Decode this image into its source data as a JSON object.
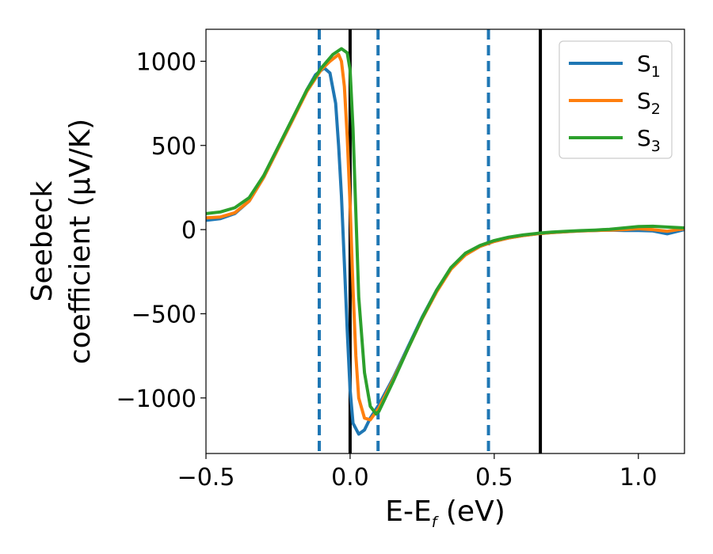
{
  "chart_data": {
    "type": "line",
    "xlabel": {
      "main": "E-E",
      "sub": "f",
      "unit": " (eV)"
    },
    "ylabel": {
      "line1": "Seebeck",
      "line2": "coefficient  (μV/K)"
    },
    "xlim": [
      -0.5,
      1.16
    ],
    "ylim": [
      -1330,
      1190
    ],
    "xticks": [
      -0.5,
      0.0,
      0.5,
      1.0
    ],
    "xtick_labels": [
      "−0.5",
      "0.0",
      "0.5",
      "1.0"
    ],
    "yticks": [
      -1000,
      -500,
      0,
      500,
      1000
    ],
    "ytick_labels": [
      "−1000",
      "−500",
      "0",
      "500",
      "1000"
    ],
    "grid": false,
    "legend": {
      "position": "top-right",
      "entries": [
        {
          "base": "S",
          "sub": "1",
          "color": "#1f77b4"
        },
        {
          "base": "S",
          "sub": "2",
          "color": "#ff7f0e"
        },
        {
          "base": "S",
          "sub": "3",
          "color": "#2ca02c"
        }
      ]
    },
    "vlines": [
      {
        "x": -0.107,
        "style": "dashed",
        "color": "#1f77b4"
      },
      {
        "x": 0.0,
        "style": "solid",
        "color": "#000000"
      },
      {
        "x": 0.097,
        "style": "dashed",
        "color": "#1f77b4"
      },
      {
        "x": 0.48,
        "style": "dashed",
        "color": "#1f77b4"
      },
      {
        "x": 0.66,
        "style": "solid",
        "color": "#000000"
      }
    ],
    "series": [
      {
        "name": "S1",
        "color": "#1f77b4",
        "points": [
          [
            -0.5,
            55
          ],
          [
            -0.45,
            65
          ],
          [
            -0.4,
            95
          ],
          [
            -0.35,
            170
          ],
          [
            -0.3,
            310
          ],
          [
            -0.25,
            480
          ],
          [
            -0.2,
            650
          ],
          [
            -0.15,
            830
          ],
          [
            -0.12,
            920
          ],
          [
            -0.09,
            960
          ],
          [
            -0.07,
            930
          ],
          [
            -0.05,
            750
          ],
          [
            -0.04,
            500
          ],
          [
            -0.03,
            200
          ],
          [
            -0.02,
            -200
          ],
          [
            -0.01,
            -600
          ],
          [
            0.0,
            -950
          ],
          [
            0.01,
            -1150
          ],
          [
            0.03,
            -1215
          ],
          [
            0.05,
            -1190
          ],
          [
            0.07,
            -1120
          ],
          [
            0.1,
            -1040
          ],
          [
            0.15,
            -880
          ],
          [
            0.2,
            -700
          ],
          [
            0.25,
            -520
          ],
          [
            0.3,
            -360
          ],
          [
            0.35,
            -230
          ],
          [
            0.4,
            -150
          ],
          [
            0.45,
            -100
          ],
          [
            0.5,
            -70
          ],
          [
            0.55,
            -50
          ],
          [
            0.6,
            -35
          ],
          [
            0.65,
            -25
          ],
          [
            0.7,
            -18
          ],
          [
            0.75,
            -12
          ],
          [
            0.8,
            -8
          ],
          [
            0.85,
            -5
          ],
          [
            0.9,
            -3
          ],
          [
            0.95,
            -5
          ],
          [
            1.0,
            -5
          ],
          [
            1.05,
            -8
          ],
          [
            1.1,
            -25
          ],
          [
            1.16,
            0
          ]
        ]
      },
      {
        "name": "S2",
        "color": "#ff7f0e",
        "points": [
          [
            -0.5,
            70
          ],
          [
            -0.45,
            75
          ],
          [
            -0.4,
            100
          ],
          [
            -0.35,
            170
          ],
          [
            -0.3,
            310
          ],
          [
            -0.25,
            480
          ],
          [
            -0.2,
            650
          ],
          [
            -0.15,
            820
          ],
          [
            -0.1,
            950
          ],
          [
            -0.07,
            1000
          ],
          [
            -0.04,
            1040
          ],
          [
            -0.03,
            1000
          ],
          [
            -0.02,
            850
          ],
          [
            -0.01,
            550
          ],
          [
            0.0,
            150
          ],
          [
            0.01,
            -350
          ],
          [
            0.02,
            -750
          ],
          [
            0.03,
            -1000
          ],
          [
            0.05,
            -1120
          ],
          [
            0.07,
            -1130
          ],
          [
            0.1,
            -1060
          ],
          [
            0.15,
            -890
          ],
          [
            0.2,
            -710
          ],
          [
            0.25,
            -530
          ],
          [
            0.3,
            -370
          ],
          [
            0.35,
            -235
          ],
          [
            0.4,
            -150
          ],
          [
            0.45,
            -100
          ],
          [
            0.5,
            -70
          ],
          [
            0.55,
            -50
          ],
          [
            0.6,
            -35
          ],
          [
            0.65,
            -25
          ],
          [
            0.7,
            -18
          ],
          [
            0.75,
            -12
          ],
          [
            0.8,
            -8
          ],
          [
            0.85,
            -5
          ],
          [
            0.9,
            -3
          ],
          [
            0.95,
            0
          ],
          [
            1.0,
            5
          ],
          [
            1.05,
            0
          ],
          [
            1.1,
            -10
          ],
          [
            1.16,
            5
          ]
        ]
      },
      {
        "name": "S3",
        "color": "#2ca02c",
        "points": [
          [
            -0.5,
            95
          ],
          [
            -0.45,
            105
          ],
          [
            -0.4,
            130
          ],
          [
            -0.35,
            190
          ],
          [
            -0.3,
            320
          ],
          [
            -0.25,
            490
          ],
          [
            -0.2,
            660
          ],
          [
            -0.15,
            830
          ],
          [
            -0.1,
            960
          ],
          [
            -0.06,
            1040
          ],
          [
            -0.03,
            1075
          ],
          [
            -0.01,
            1050
          ],
          [
            0.0,
            950
          ],
          [
            0.01,
            600
          ],
          [
            0.02,
            100
          ],
          [
            0.03,
            -400
          ],
          [
            0.05,
            -850
          ],
          [
            0.07,
            -1050
          ],
          [
            0.09,
            -1095
          ],
          [
            0.1,
            -1080
          ],
          [
            0.15,
            -900
          ],
          [
            0.2,
            -710
          ],
          [
            0.25,
            -525
          ],
          [
            0.3,
            -360
          ],
          [
            0.35,
            -225
          ],
          [
            0.4,
            -140
          ],
          [
            0.45,
            -95
          ],
          [
            0.5,
            -65
          ],
          [
            0.55,
            -45
          ],
          [
            0.6,
            -32
          ],
          [
            0.65,
            -22
          ],
          [
            0.7,
            -15
          ],
          [
            0.75,
            -10
          ],
          [
            0.8,
            -6
          ],
          [
            0.85,
            -3
          ],
          [
            0.9,
            2
          ],
          [
            0.95,
            10
          ],
          [
            1.0,
            18
          ],
          [
            1.05,
            20
          ],
          [
            1.1,
            15
          ],
          [
            1.16,
            10
          ]
        ]
      }
    ]
  }
}
